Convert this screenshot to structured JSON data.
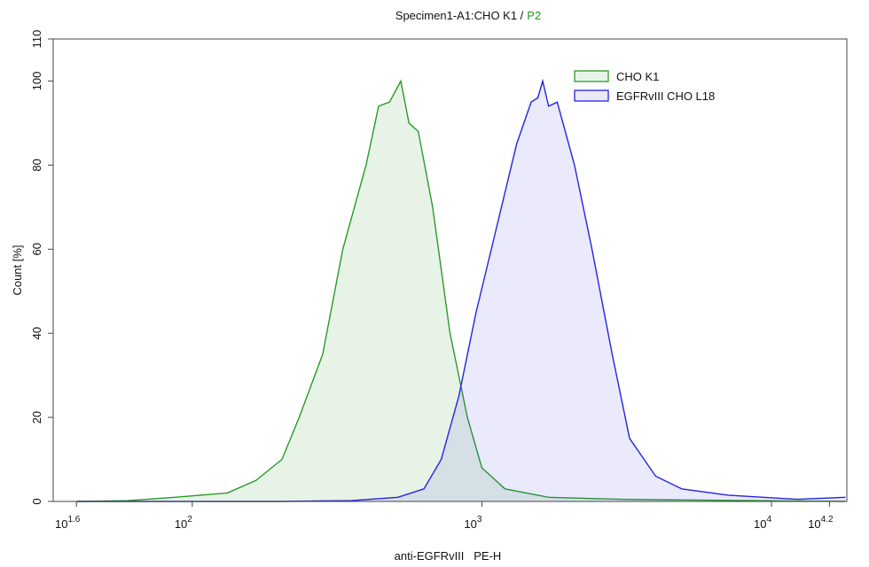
{
  "chart_data": {
    "type": "histogram-overlay",
    "title_parts": [
      {
        "text": "Specimen1-A1:CHO K1 /",
        "color": "#111111"
      },
      {
        "text": "P2",
        "color": "#1a9a1a"
      }
    ],
    "x_label": "anti-EGFRvIII   PE-H",
    "y_label": "Count [%]",
    "x_scale": "log",
    "xlim": [
      33.1,
      18200
    ],
    "xticks": [
      {
        "value": 39.81,
        "base": "10",
        "exponent": "1.6"
      },
      {
        "value": 100,
        "base": "10",
        "exponent": "2"
      },
      {
        "value": 1000,
        "base": "10",
        "exponent": "3"
      },
      {
        "value": 10000,
        "base": "10",
        "exponent": "4"
      },
      {
        "value": 15849,
        "base": "10",
        "exponent": "4.2"
      }
    ],
    "ylim": [
      0,
      110
    ],
    "yticks": [
      0,
      20,
      40,
      60,
      80,
      100,
      110
    ],
    "legend": "upper right",
    "series": [
      {
        "name": "CHO K1",
        "color": "#2a9a2a",
        "fill": "rgba(40,150,40,0.11)",
        "x": [
          40,
          60,
          87,
          132,
          166,
          204,
          234,
          282,
          331,
          398,
          440,
          480,
          525,
          560,
          603,
          676,
          776,
          891,
          1000,
          1202,
          1698,
          3020,
          6000,
          18000
        ],
        "values": [
          0,
          0.2,
          1,
          2,
          5,
          10,
          20,
          35,
          60,
          80,
          94,
          95,
          100,
          90,
          88,
          70,
          40,
          20,
          8,
          3,
          1,
          0.5,
          0.3,
          0
        ]
      },
      {
        "name": "EGFRvIII CHO L18",
        "color": "#2424e0",
        "fill": "rgba(60,60,230,0.11)",
        "x": [
          40,
          200,
          355,
          513,
          631,
          724,
          832,
          955,
          1122,
          1318,
          1479,
          1560,
          1622,
          1700,
          1820,
          2089,
          2399,
          2818,
          3236,
          3981,
          4898,
          7079,
          12303,
          18000
        ],
        "values": [
          0,
          0,
          0.2,
          1,
          3,
          10,
          25,
          45,
          65,
          85,
          95,
          96,
          100,
          94,
          95,
          80,
          60,
          35,
          15,
          6,
          3,
          1.5,
          0.5,
          1
        ]
      }
    ]
  }
}
